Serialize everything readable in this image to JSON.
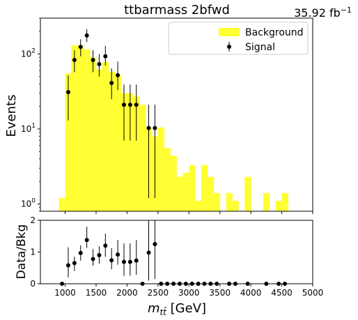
{
  "chart_data": [
    {
      "type": "bar",
      "panel": "main",
      "title": "ttbarmass 2bfwd",
      "lumi_label": "35.92 fb",
      "lumi_sup": "−1",
      "ylabel": "Events",
      "yscale": "log",
      "xlim": [
        600,
        5000
      ],
      "ylim": [
        0.8,
        300
      ],
      "y_ticks": [
        {
          "v": 1,
          "base": "10",
          "exp": "0"
        },
        {
          "v": 10,
          "base": "10",
          "exp": "1"
        },
        {
          "v": 100,
          "base": "10",
          "exp": "2"
        }
      ],
      "legend": {
        "position": "upper-right",
        "background_label": "Background",
        "signal_label": "Signal"
      },
      "colors": {
        "background": "#ffff33",
        "signal": "#000000"
      },
      "bin_width": 100,
      "background": [
        {
          "x": 900,
          "y": 1.2
        },
        {
          "x": 1000,
          "y": 55
        },
        {
          "x": 1100,
          "y": 130
        },
        {
          "x": 1200,
          "y": 130
        },
        {
          "x": 1300,
          "y": 115
        },
        {
          "x": 1400,
          "y": 90
        },
        {
          "x": 1500,
          "y": 62
        },
        {
          "x": 1600,
          "y": 78
        },
        {
          "x": 1700,
          "y": 58
        },
        {
          "x": 1800,
          "y": 52
        },
        {
          "x": 1900,
          "y": 30
        },
        {
          "x": 2000,
          "y": 30
        },
        {
          "x": 2100,
          "y": 27
        },
        {
          "x": 2200,
          "y": 21
        },
        {
          "x": 2300,
          "y": 10.5
        },
        {
          "x": 2400,
          "y": 8
        },
        {
          "x": 2500,
          "y": 10.5
        },
        {
          "x": 2600,
          "y": 5.6
        },
        {
          "x": 2700,
          "y": 4.4
        },
        {
          "x": 2800,
          "y": 2.3
        },
        {
          "x": 2900,
          "y": 2.6
        },
        {
          "x": 3000,
          "y": 3.3
        },
        {
          "x": 3100,
          "y": 1.1
        },
        {
          "x": 3200,
          "y": 3.3
        },
        {
          "x": 3300,
          "y": 2.3
        },
        {
          "x": 3400,
          "y": 1.4
        },
        {
          "x": 3500,
          "y": 0.5
        },
        {
          "x": 3600,
          "y": 1.4
        },
        {
          "x": 3700,
          "y": 1.1
        },
        {
          "x": 3800,
          "y": 0.5
        },
        {
          "x": 3900,
          "y": 2.3
        },
        {
          "x": 4000,
          "y": 0.5
        },
        {
          "x": 4100,
          "y": 0.5
        },
        {
          "x": 4200,
          "y": 1.4
        },
        {
          "x": 4300,
          "y": 0.5
        },
        {
          "x": 4400,
          "y": 1.1
        },
        {
          "x": 4500,
          "y": 1.4
        }
      ],
      "signal": [
        {
          "x": 1050,
          "y": 31,
          "lo": 13,
          "hi": 52
        },
        {
          "x": 1150,
          "y": 83,
          "lo": 57,
          "hi": 112
        },
        {
          "x": 1250,
          "y": 124,
          "lo": 93,
          "hi": 157
        },
        {
          "x": 1350,
          "y": 176,
          "lo": 144,
          "hi": 214
        },
        {
          "x": 1450,
          "y": 83,
          "lo": 57,
          "hi": 112
        },
        {
          "x": 1550,
          "y": 73,
          "lo": 50,
          "hi": 99
        },
        {
          "x": 1650,
          "y": 93,
          "lo": 70,
          "hi": 128
        },
        {
          "x": 1750,
          "y": 41,
          "lo": 25,
          "hi": 64
        },
        {
          "x": 1850,
          "y": 52,
          "lo": 33,
          "hi": 79
        },
        {
          "x": 1950,
          "y": 21,
          "lo": 7,
          "hi": 39
        },
        {
          "x": 2050,
          "y": 21,
          "lo": 7,
          "hi": 39
        },
        {
          "x": 2150,
          "y": 21,
          "lo": 7,
          "hi": 39
        },
        {
          "x": 2350,
          "y": 10.3,
          "lo": 1.2,
          "hi": 21
        },
        {
          "x": 2450,
          "y": 10.3,
          "lo": 1.2,
          "hi": 21
        }
      ]
    },
    {
      "type": "scatter",
      "panel": "ratio",
      "xlabel_main": "m",
      "xlabel_sub": "tt̄",
      "xlabel_unit": " [GeV]",
      "ylabel": "Data/Bkg",
      "xlim": [
        600,
        5000
      ],
      "ylim": [
        0,
        2
      ],
      "x_ticks": [
        1000,
        1500,
        2000,
        2500,
        3000,
        3500,
        4000,
        4500,
        5000
      ],
      "y_ticks": [
        0,
        1,
        2
      ],
      "points": [
        {
          "x": 950,
          "y": 0
        },
        {
          "x": 1050,
          "y": 0.58,
          "lo": 0.2,
          "hi": 1.15
        },
        {
          "x": 1150,
          "y": 0.65,
          "lo": 0.4,
          "hi": 0.85
        },
        {
          "x": 1250,
          "y": 0.97,
          "lo": 0.73,
          "hi": 1.21
        },
        {
          "x": 1350,
          "y": 1.38,
          "lo": 1.13,
          "hi": 1.8
        },
        {
          "x": 1450,
          "y": 0.78,
          "lo": 0.57,
          "hi": 1.09
        },
        {
          "x": 1550,
          "y": 0.9,
          "lo": 0.63,
          "hi": 1.18
        },
        {
          "x": 1650,
          "y": 1.2,
          "lo": 0.85,
          "hi": 1.58
        },
        {
          "x": 1750,
          "y": 0.74,
          "lo": 0.45,
          "hi": 1.12
        },
        {
          "x": 1850,
          "y": 0.92,
          "lo": 0.6,
          "hi": 1.38
        },
        {
          "x": 1950,
          "y": 0.69,
          "lo": 0.25,
          "hi": 1.27
        },
        {
          "x": 2050,
          "y": 0.69,
          "lo": 0.25,
          "hi": 1.27
        },
        {
          "x": 2150,
          "y": 0.73,
          "lo": 0.28,
          "hi": 1.38
        },
        {
          "x": 2250,
          "y": 0
        },
        {
          "x": 2350,
          "y": 0.98,
          "lo": 0.1,
          "hi": 2.0
        },
        {
          "x": 2450,
          "y": 1.25,
          "lo": 0.15,
          "hi": 2.0
        },
        {
          "x": 2550,
          "y": 0
        },
        {
          "x": 2650,
          "y": 0
        },
        {
          "x": 2750,
          "y": 0
        },
        {
          "x": 2850,
          "y": 0
        },
        {
          "x": 2950,
          "y": 0
        },
        {
          "x": 3050,
          "y": 0
        },
        {
          "x": 3150,
          "y": 0
        },
        {
          "x": 3250,
          "y": 0
        },
        {
          "x": 3350,
          "y": 0
        },
        {
          "x": 3450,
          "y": 0
        },
        {
          "x": 3650,
          "y": 0
        },
        {
          "x": 3750,
          "y": 0
        },
        {
          "x": 3950,
          "y": 0
        },
        {
          "x": 4250,
          "y": 0
        },
        {
          "x": 4450,
          "y": 0
        },
        {
          "x": 4550,
          "y": 0
        }
      ]
    }
  ]
}
